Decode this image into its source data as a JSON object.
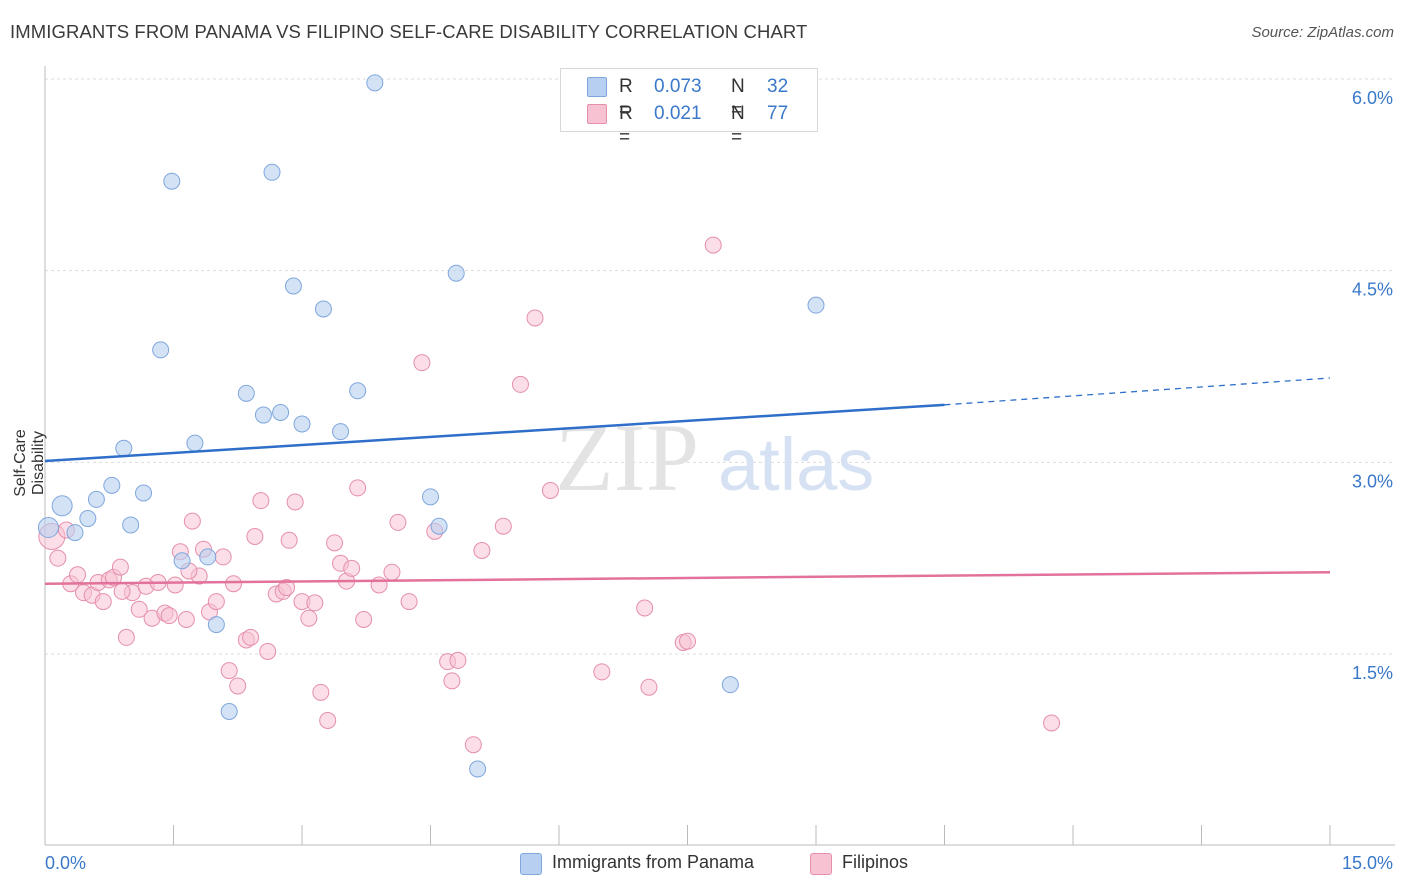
{
  "title": "IMMIGRANTS FROM PANAMA VS FILIPINO SELF-CARE DISABILITY CORRELATION CHART",
  "source": "Source: ZipAtlas.com",
  "watermark": {
    "zip": "ZIP",
    "atlas": "atlas"
  },
  "colors": {
    "blue_fill": "#b7cff0",
    "blue_stroke": "#7fa7dc",
    "blue_line": "#2f6fc9",
    "pink_fill": "#f7c3d3",
    "pink_stroke": "#e58fac",
    "pink_line": "#e2729b",
    "axis_text": "#3a78c9",
    "grid": "#dddddd"
  },
  "legend_top": {
    "rows": [
      {
        "r_label": "R =",
        "r_value": "0.073",
        "n_label": "N =",
        "n_value": "32"
      },
      {
        "r_label": "R =",
        "r_value": "0.021",
        "n_label": "N =",
        "n_value": "77"
      }
    ]
  },
  "legend_bottom": {
    "items": [
      "Immigrants from Panama",
      "Filipinos"
    ]
  },
  "chart_data": {
    "type": "scatter",
    "title": "IMMIGRANTS FROM PANAMA VS FILIPINO SELF-CARE DISABILITY CORRELATION CHART",
    "xlabel": "",
    "ylabel": "Self-Care Disability",
    "xlim": [
      0,
      15
    ],
    "ylim": [
      0,
      6.25
    ],
    "x_tick_labels": [
      "0.0%",
      "15.0%"
    ],
    "y_ticks": [
      1.5,
      3.0,
      4.5,
      6.0
    ],
    "y_tick_labels": [
      "1.5%",
      "3.0%",
      "4.5%",
      "6.0%"
    ],
    "grid": true,
    "legend_placement": "top-center",
    "series": [
      {
        "name": "Immigrants from Panama",
        "R": 0.073,
        "N": 32,
        "trend": {
          "x0": 0,
          "y0": 3.01,
          "x1": 10.5,
          "y1": 3.45,
          "dashed_to_x": 15.0,
          "dashed_to_y": 3.66
        },
        "points": [
          [
            0.04,
            2.49
          ],
          [
            0.2,
            2.66
          ],
          [
            0.35,
            2.45
          ],
          [
            0.5,
            2.56
          ],
          [
            0.6,
            2.71
          ],
          [
            0.78,
            2.82
          ],
          [
            0.92,
            3.11
          ],
          [
            1.0,
            2.51
          ],
          [
            1.15,
            2.76
          ],
          [
            1.35,
            3.88
          ],
          [
            1.48,
            5.2
          ],
          [
            1.6,
            2.23
          ],
          [
            1.75,
            3.15
          ],
          [
            1.9,
            2.26
          ],
          [
            2.0,
            1.73
          ],
          [
            2.15,
            1.05
          ],
          [
            2.35,
            3.54
          ],
          [
            2.55,
            3.37
          ],
          [
            2.65,
            5.27
          ],
          [
            2.75,
            3.39
          ],
          [
            2.9,
            4.38
          ],
          [
            3.0,
            3.3
          ],
          [
            3.25,
            4.2
          ],
          [
            3.45,
            3.24
          ],
          [
            3.65,
            3.56
          ],
          [
            3.85,
            5.97
          ],
          [
            4.5,
            2.73
          ],
          [
            4.6,
            2.5
          ],
          [
            4.8,
            4.48
          ],
          [
            5.05,
            0.6
          ],
          [
            8.0,
            1.26
          ],
          [
            9.0,
            4.23
          ]
        ]
      },
      {
        "name": "Filipinos",
        "R": 0.021,
        "N": 77,
        "trend": {
          "x0": 0,
          "y0": 2.05,
          "x1": 15.0,
          "y1": 2.14
        },
        "points": [
          [
            0.08,
            2.42
          ],
          [
            0.15,
            2.25
          ],
          [
            0.25,
            2.47
          ],
          [
            0.3,
            2.05
          ],
          [
            0.38,
            2.12
          ],
          [
            0.45,
            1.98
          ],
          [
            0.55,
            1.96
          ],
          [
            0.62,
            2.06
          ],
          [
            0.68,
            1.91
          ],
          [
            0.75,
            2.08
          ],
          [
            0.8,
            2.1
          ],
          [
            0.88,
            2.18
          ],
          [
            0.95,
            1.63
          ],
          [
            1.02,
            1.98
          ],
          [
            1.1,
            1.85
          ],
          [
            1.18,
            2.03
          ],
          [
            1.25,
            1.78
          ],
          [
            1.32,
            2.06
          ],
          [
            1.4,
            1.82
          ],
          [
            1.45,
            1.8
          ],
          [
            1.52,
            2.04
          ],
          [
            1.58,
            2.3
          ],
          [
            1.65,
            1.77
          ],
          [
            1.72,
            2.54
          ],
          [
            1.8,
            2.11
          ],
          [
            1.85,
            2.32
          ],
          [
            1.92,
            1.83
          ],
          [
            2.0,
            1.91
          ],
          [
            2.08,
            2.26
          ],
          [
            2.15,
            1.37
          ],
          [
            2.2,
            2.05
          ],
          [
            2.25,
            1.25
          ],
          [
            2.35,
            1.61
          ],
          [
            2.4,
            1.63
          ],
          [
            2.45,
            2.42
          ],
          [
            2.52,
            2.7
          ],
          [
            2.6,
            1.52
          ],
          [
            2.7,
            1.97
          ],
          [
            2.78,
            1.99
          ],
          [
            2.85,
            2.39
          ],
          [
            2.92,
            2.69
          ],
          [
            3.0,
            1.91
          ],
          [
            3.08,
            1.78
          ],
          [
            3.15,
            1.9
          ],
          [
            3.22,
            1.2
          ],
          [
            3.3,
            0.98
          ],
          [
            3.38,
            2.37
          ],
          [
            3.45,
            2.21
          ],
          [
            3.52,
            2.07
          ],
          [
            3.58,
            2.17
          ],
          [
            3.65,
            2.8
          ],
          [
            3.72,
            1.77
          ],
          [
            3.9,
            2.04
          ],
          [
            4.05,
            2.14
          ],
          [
            4.12,
            2.53
          ],
          [
            4.25,
            1.91
          ],
          [
            4.4,
            3.78
          ],
          [
            4.55,
            2.46
          ],
          [
            4.7,
            1.44
          ],
          [
            4.75,
            1.29
          ],
          [
            4.82,
            1.45
          ],
          [
            5.0,
            0.79
          ],
          [
            5.1,
            2.31
          ],
          [
            5.35,
            2.5
          ],
          [
            5.55,
            3.61
          ],
          [
            5.72,
            4.13
          ],
          [
            5.9,
            2.78
          ],
          [
            6.5,
            1.36
          ],
          [
            7.0,
            1.86
          ],
          [
            7.05,
            1.24
          ],
          [
            7.45,
            1.59
          ],
          [
            7.5,
            1.6
          ],
          [
            7.8,
            4.7
          ],
          [
            11.75,
            0.96
          ],
          [
            1.68,
            2.15
          ],
          [
            2.82,
            2.02
          ],
          [
            0.9,
            1.99
          ]
        ]
      }
    ]
  }
}
